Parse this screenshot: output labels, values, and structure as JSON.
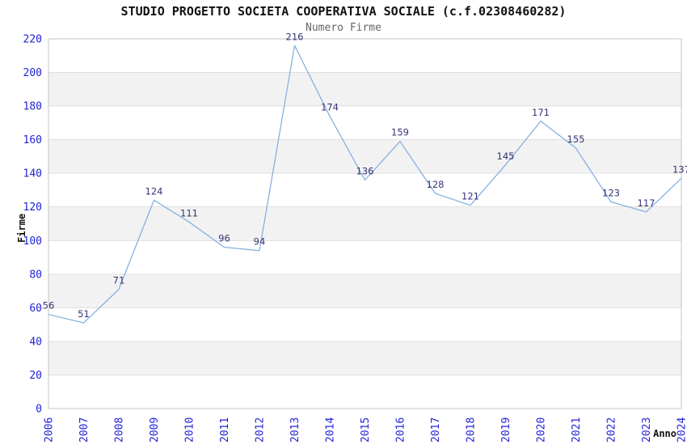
{
  "chart_data": {
    "type": "line",
    "title": "STUDIO PROGETTO SOCIETA COOPERATIVA SOCIALE (c.f.02308460282)",
    "subtitle": "Numero Firme",
    "xlabel": "Anno",
    "ylabel": "Firme",
    "categories": [
      "2006",
      "2007",
      "2008",
      "2009",
      "2010",
      "2011",
      "2012",
      "2013",
      "2014",
      "2015",
      "2016",
      "2017",
      "2018",
      "2019",
      "2020",
      "2021",
      "2022",
      "2023",
      "2024"
    ],
    "values": [
      56,
      51,
      71,
      124,
      111,
      96,
      94,
      216,
      174,
      136,
      159,
      128,
      121,
      145,
      171,
      155,
      123,
      117,
      137
    ],
    "ylim": [
      0,
      220
    ],
    "yticks": [
      0,
      20,
      40,
      60,
      80,
      100,
      120,
      140,
      160,
      180,
      200,
      220
    ],
    "point_labels_shown": true,
    "legend": "none",
    "grid": "horizontal",
    "band_fill": "alternating-horizontal",
    "colors": {
      "line": "#7FACDF",
      "point_label": "#333377",
      "tick_label": "#2323D7",
      "title": "#111111",
      "subtitle": "#666666",
      "band": "#F2F2F2",
      "grid": "#E0E0E0",
      "border": "#C4C4C4",
      "background": "#FFFFFF"
    }
  }
}
